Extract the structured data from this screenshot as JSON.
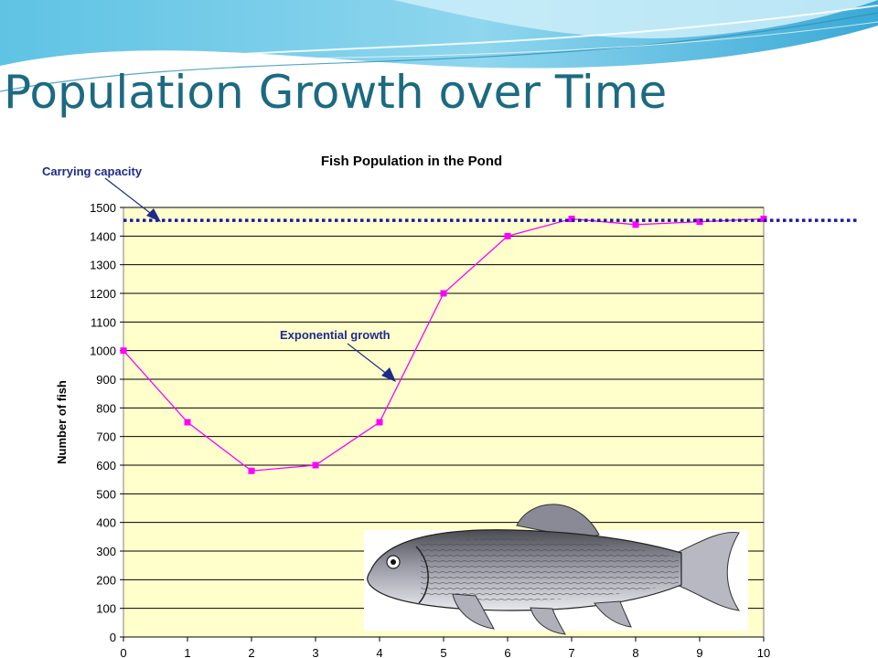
{
  "slide": {
    "title": "Population Growth over Time"
  },
  "colors": {
    "title": "#1b6a82",
    "plot_background": "#ffffcc",
    "series": "#ff00ff",
    "carrying_capacity_line": "#1a1aa6",
    "annotation": "#1f2a8c"
  },
  "illustration": {
    "icon": "fish-illustration"
  },
  "chart_data": {
    "type": "line",
    "title": "Fish Population in the Pond",
    "xlabel": "",
    "ylabel": "Number of fish",
    "x": [
      0,
      1,
      2,
      3,
      4,
      5,
      6,
      7,
      8,
      9,
      10
    ],
    "series": [
      {
        "values": [
          1000,
          750,
          580,
          600,
          750,
          1200,
          1400,
          1460,
          1440,
          1450,
          1460
        ]
      }
    ],
    "xlim": [
      0,
      10
    ],
    "ylim": [
      0,
      1500
    ],
    "yticks": [
      0,
      100,
      200,
      300,
      400,
      500,
      600,
      700,
      800,
      900,
      1000,
      1100,
      1200,
      1300,
      1400,
      1500
    ],
    "xticks": [
      0,
      1,
      2,
      3,
      4,
      5,
      6,
      7,
      8,
      9,
      10
    ],
    "grid": "horizontal",
    "legend": "none",
    "reference_line": {
      "label": "Carrying capacity",
      "value": 1455,
      "style": "dotted"
    },
    "annotations": [
      {
        "text": "Carrying capacity",
        "points_to": [
          0.5,
          1455
        ]
      },
      {
        "text": "Exponential growth",
        "points_to": [
          4.25,
          880
        ]
      }
    ]
  }
}
